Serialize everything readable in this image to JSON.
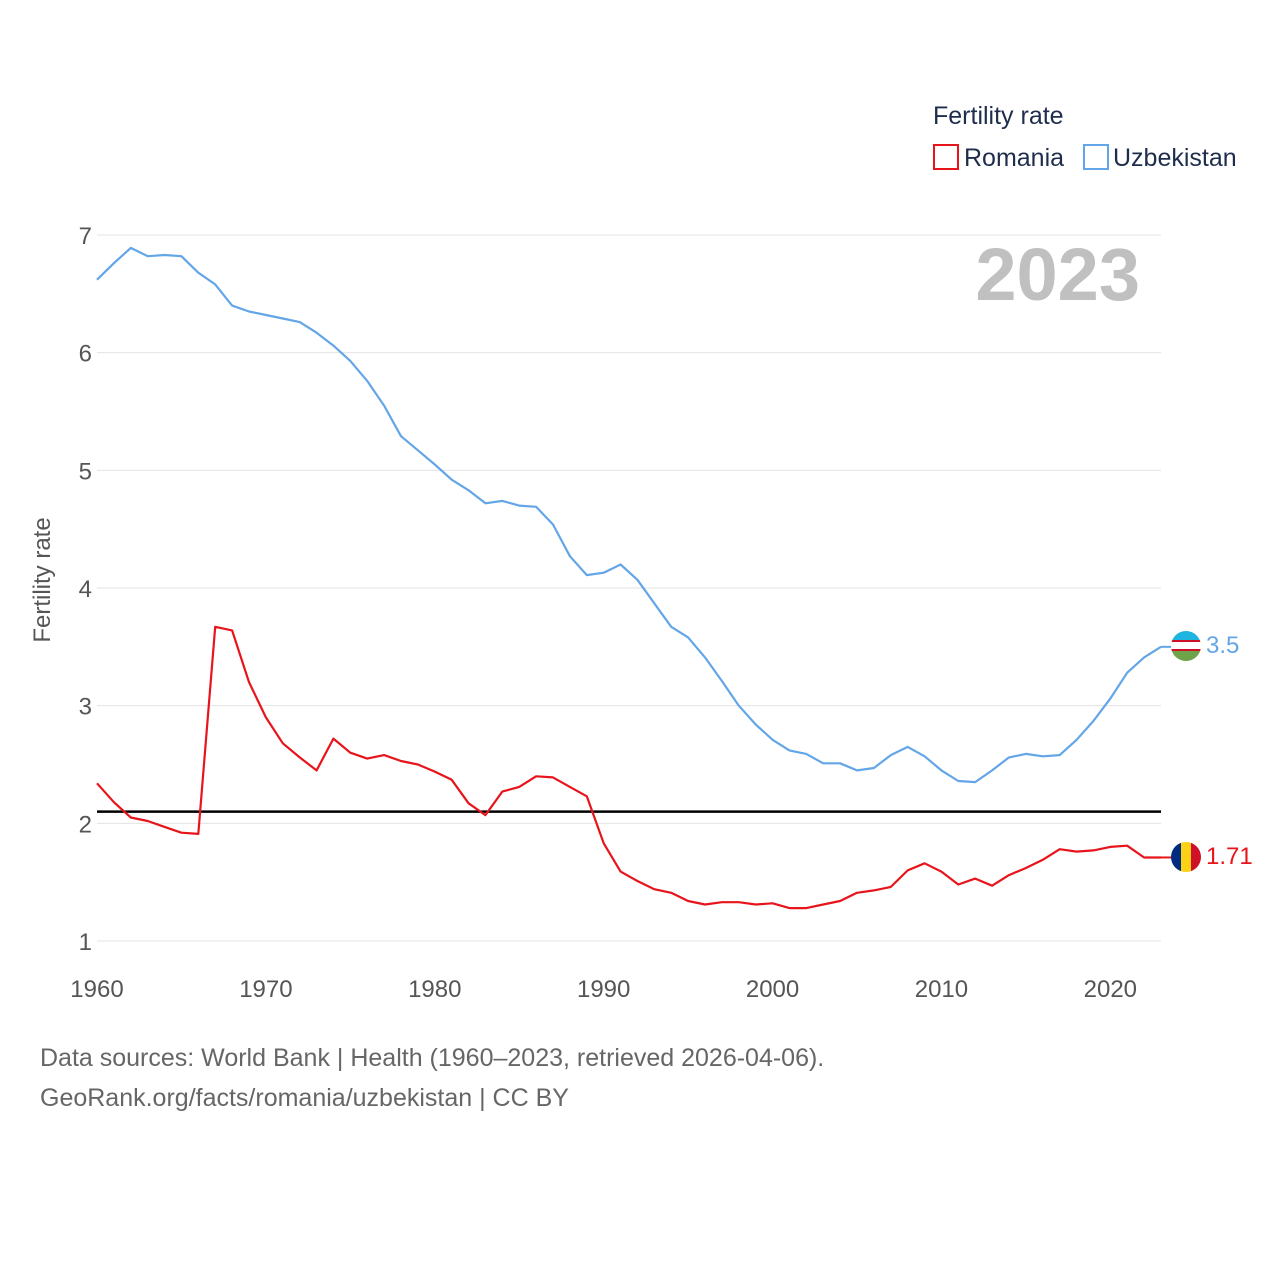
{
  "chart_data": {
    "type": "line",
    "year_display": "2023",
    "ylabel": "Fertility rate",
    "ylim": [
      1,
      7
    ],
    "xlim": [
      1960,
      2023
    ],
    "yticks": [
      1,
      2,
      3,
      4,
      5,
      6,
      7
    ],
    "xticks": [
      1960,
      1970,
      1980,
      1990,
      2000,
      2010,
      2020
    ],
    "reference_line": 2.1,
    "legend": {
      "title": "Fertility rate",
      "position": "top-right"
    },
    "x": [
      1960,
      1961,
      1962,
      1963,
      1964,
      1965,
      1966,
      1967,
      1968,
      1969,
      1970,
      1971,
      1972,
      1973,
      1974,
      1975,
      1976,
      1977,
      1978,
      1979,
      1980,
      1981,
      1982,
      1983,
      1984,
      1985,
      1986,
      1987,
      1988,
      1989,
      1990,
      1991,
      1992,
      1993,
      1994,
      1995,
      1996,
      1997,
      1998,
      1999,
      2000,
      2001,
      2002,
      2003,
      2004,
      2005,
      2006,
      2007,
      2008,
      2009,
      2010,
      2011,
      2012,
      2013,
      2014,
      2015,
      2016,
      2017,
      2018,
      2019,
      2020,
      2021,
      2022,
      2023
    ],
    "series": [
      {
        "name": "Romania",
        "color": "#e8141b",
        "end_label": "1.71",
        "flag": "romania-flag",
        "values": [
          2.34,
          2.18,
          2.05,
          2.02,
          1.97,
          1.92,
          1.91,
          3.67,
          3.64,
          3.2,
          2.9,
          2.68,
          2.56,
          2.45,
          2.72,
          2.6,
          2.55,
          2.58,
          2.53,
          2.5,
          2.44,
          2.37,
          2.17,
          2.07,
          2.27,
          2.31,
          2.4,
          2.39,
          2.31,
          2.23,
          1.83,
          1.59,
          1.51,
          1.44,
          1.41,
          1.34,
          1.31,
          1.33,
          1.33,
          1.31,
          1.32,
          1.28,
          1.28,
          1.31,
          1.34,
          1.41,
          1.43,
          1.46,
          1.6,
          1.66,
          1.59,
          1.48,
          1.53,
          1.47,
          1.56,
          1.62,
          1.69,
          1.78,
          1.76,
          1.77,
          1.8,
          1.81,
          1.71,
          1.71
        ]
      },
      {
        "name": "Uzbekistan",
        "color": "#63a6e8",
        "end_label": "3.5",
        "flag": "uzbekistan-flag",
        "values": [
          6.62,
          6.76,
          6.89,
          6.82,
          6.83,
          6.82,
          6.68,
          6.58,
          6.4,
          6.35,
          6.32,
          6.29,
          6.26,
          6.17,
          6.06,
          5.93,
          5.76,
          5.55,
          5.29,
          5.17,
          5.05,
          4.92,
          4.83,
          4.72,
          4.74,
          4.7,
          4.69,
          4.54,
          4.27,
          4.11,
          4.13,
          4.2,
          4.07,
          3.87,
          3.67,
          3.58,
          3.41,
          3.21,
          3.0,
          2.84,
          2.71,
          2.62,
          2.59,
          2.51,
          2.51,
          2.45,
          2.47,
          2.58,
          2.65,
          2.57,
          2.45,
          2.36,
          2.35,
          2.45,
          2.56,
          2.59,
          2.57,
          2.58,
          2.71,
          2.87,
          3.06,
          3.28,
          3.41,
          3.5
        ]
      }
    ]
  },
  "source": {
    "line1": "Data sources: World Bank | Health (1960–2023, retrieved 2026-04-06).",
    "line2": "GeoRank.org/facts/romania/uzbekistan | CC BY"
  }
}
